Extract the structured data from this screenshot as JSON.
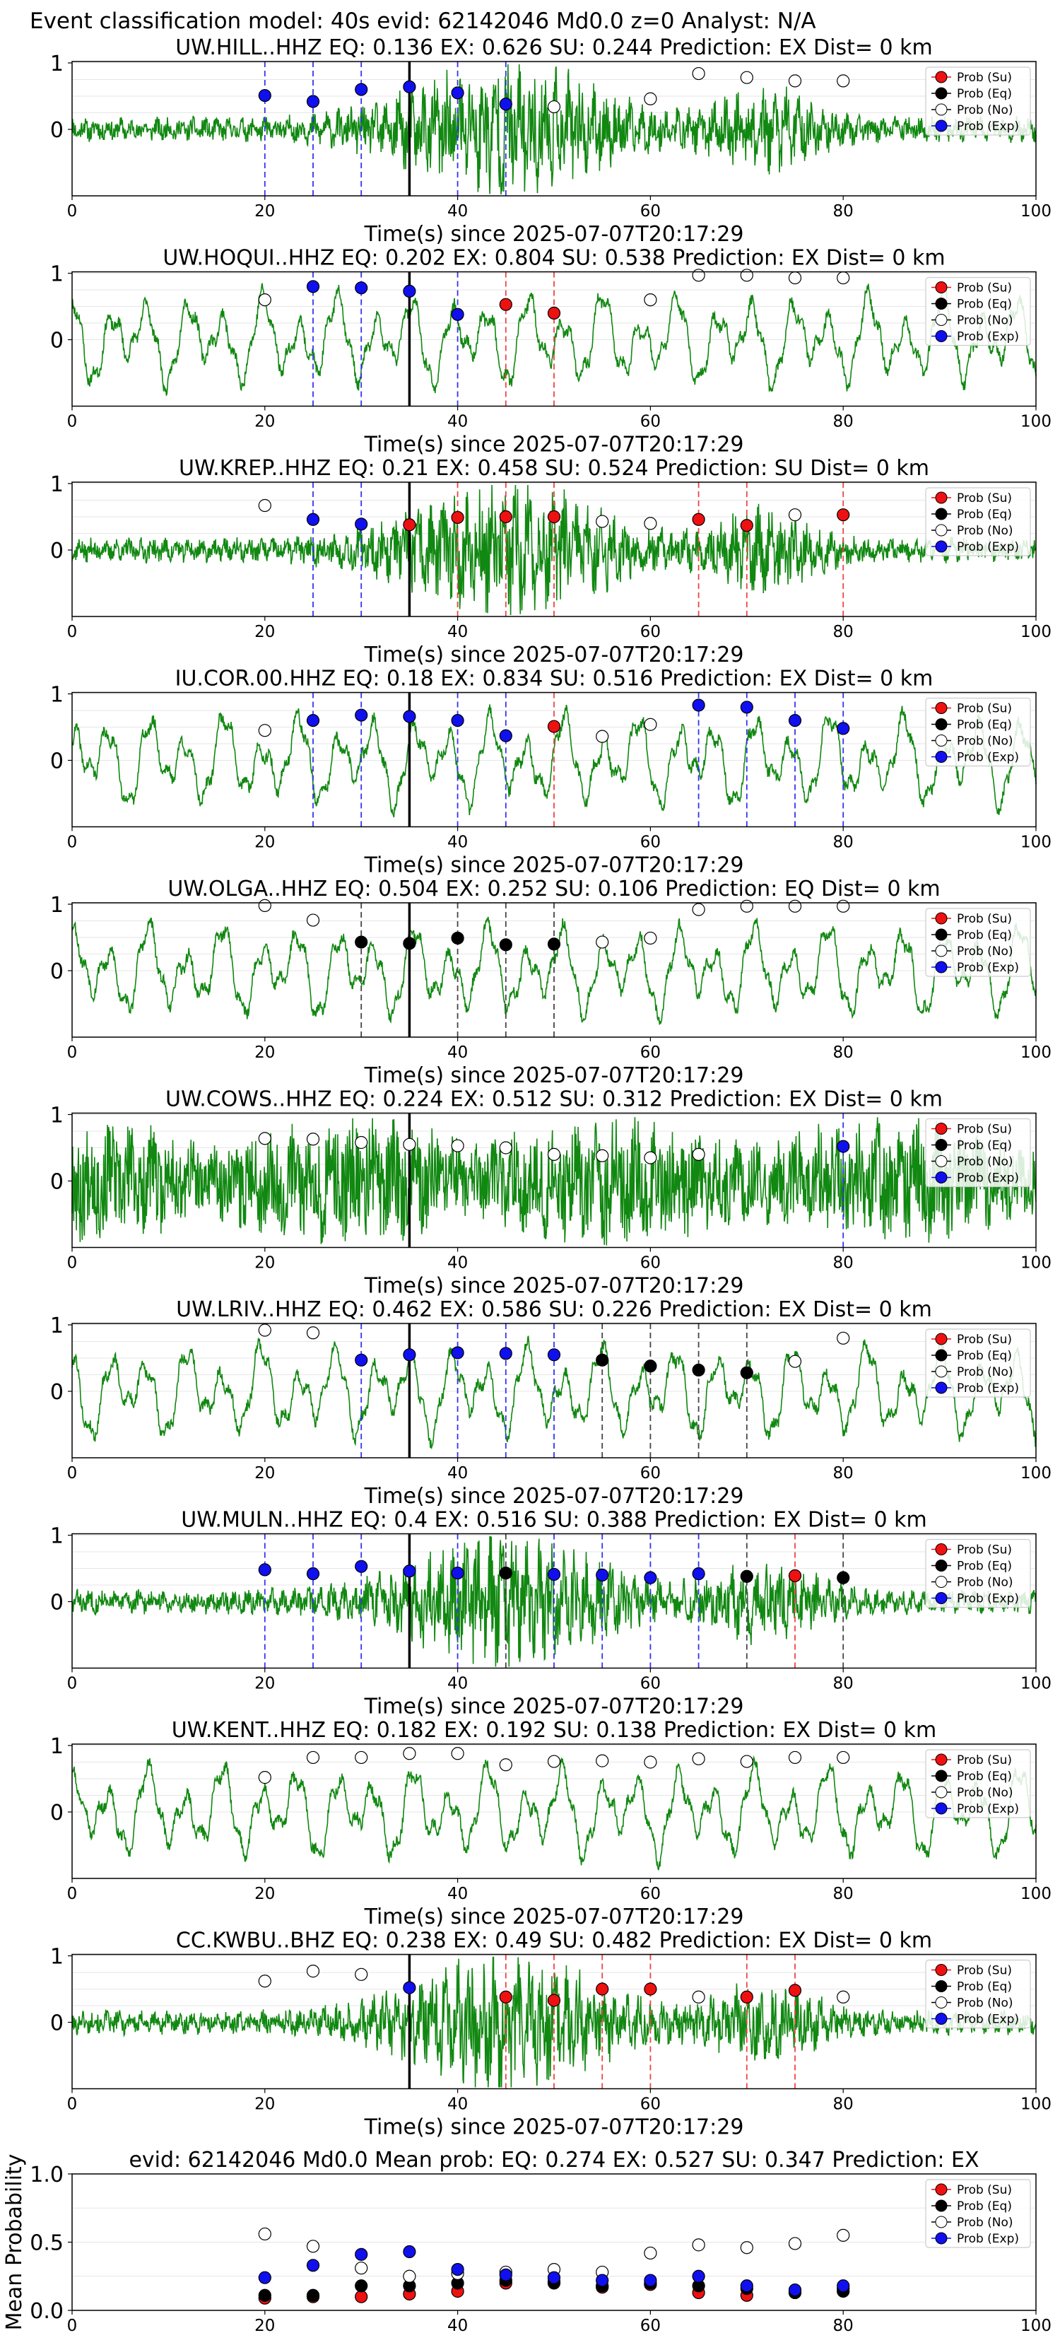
{
  "figure": {
    "suptitle": "Event classification model: 40s evid: 62142046 Md0.0 z=0 Analyst: N/A"
  },
  "legend": {
    "su": "Prob (Su)",
    "eq": "Prob (Eq)",
    "no": "Prob (No)",
    "exp": "Prob (Exp)"
  },
  "colors": {
    "su": "#ee1111",
    "eq": "#000000",
    "no": "#ffffff",
    "exp": "#1010ee",
    "waveform": "#118811",
    "su_line": "#ee4444",
    "eq_line": "#444444",
    "exp_line": "#3333ee"
  },
  "chart_data": [
    {
      "type": "line",
      "title": "UW.HILL..HHZ   EQ: 0.136  EX: 0.626  SU: 0.244   Prediction: EX    Dist= 0 km",
      "xlabel": "Time(s) since 2025-07-07T20:17:29",
      "xlim": [
        0,
        100
      ],
      "xticks": [
        "0",
        "20",
        "40",
        "60",
        "80",
        "100"
      ],
      "yticks": [
        "1",
        "0"
      ],
      "waveform_seed": 11,
      "waveform_style": "burst",
      "arrival_line_x": 35,
      "points": [
        {
          "x": 20,
          "y": 0.51,
          "cls": "exp"
        },
        {
          "x": 25,
          "y": 0.42,
          "cls": "exp"
        },
        {
          "x": 30,
          "y": 0.6,
          "cls": "exp"
        },
        {
          "x": 35,
          "y": 0.64,
          "cls": "exp"
        },
        {
          "x": 40,
          "y": 0.55,
          "cls": "exp"
        },
        {
          "x": 45,
          "y": 0.38,
          "cls": "exp"
        },
        {
          "x": 50,
          "y": 0.34,
          "cls": "no"
        },
        {
          "x": 60,
          "y": 0.46,
          "cls": "no"
        },
        {
          "x": 65,
          "y": 0.84,
          "cls": "no"
        },
        {
          "x": 70,
          "y": 0.78,
          "cls": "no"
        },
        {
          "x": 75,
          "y": 0.73,
          "cls": "no"
        },
        {
          "x": 80,
          "y": 0.73,
          "cls": "no"
        }
      ]
    },
    {
      "type": "line",
      "title": "UW.HOQUI..HHZ   EQ: 0.202  EX: 0.804  SU: 0.538   Prediction: EX    Dist= 0 km",
      "xlabel": "Time(s) since 2025-07-07T20:17:29",
      "xlim": [
        0,
        100
      ],
      "xticks": [
        "0",
        "20",
        "40",
        "60",
        "80",
        "100"
      ],
      "yticks": [
        "1",
        "0"
      ],
      "waveform_seed": 23,
      "waveform_style": "wavy",
      "arrival_line_x": 35,
      "points": [
        {
          "x": 20,
          "y": 0.6,
          "cls": "no"
        },
        {
          "x": 25,
          "y": 0.8,
          "cls": "exp"
        },
        {
          "x": 30,
          "y": 0.78,
          "cls": "exp"
        },
        {
          "x": 35,
          "y": 0.73,
          "cls": "exp"
        },
        {
          "x": 40,
          "y": 0.38,
          "cls": "exp"
        },
        {
          "x": 45,
          "y": 0.53,
          "cls": "su"
        },
        {
          "x": 50,
          "y": 0.4,
          "cls": "su"
        },
        {
          "x": 60,
          "y": 0.6,
          "cls": "no"
        },
        {
          "x": 65,
          "y": 0.97,
          "cls": "no"
        },
        {
          "x": 70,
          "y": 0.97,
          "cls": "no"
        },
        {
          "x": 75,
          "y": 0.93,
          "cls": "no"
        },
        {
          "x": 80,
          "y": 0.93,
          "cls": "no"
        }
      ]
    },
    {
      "type": "line",
      "title": "UW.KREP..HHZ   EQ: 0.21  EX: 0.458  SU: 0.524   Prediction: SU    Dist= 0 km",
      "xlabel": "Time(s) since 2025-07-07T20:17:29",
      "xlim": [
        0,
        100
      ],
      "xticks": [
        "0",
        "20",
        "40",
        "60",
        "80",
        "100"
      ],
      "yticks": [
        "1",
        "0"
      ],
      "waveform_seed": 37,
      "waveform_style": "burst",
      "arrival_line_x": 35,
      "points": [
        {
          "x": 20,
          "y": 0.67,
          "cls": "no"
        },
        {
          "x": 25,
          "y": 0.46,
          "cls": "exp"
        },
        {
          "x": 30,
          "y": 0.39,
          "cls": "exp"
        },
        {
          "x": 35,
          "y": 0.38,
          "cls": "su"
        },
        {
          "x": 40,
          "y": 0.49,
          "cls": "su"
        },
        {
          "x": 45,
          "y": 0.5,
          "cls": "su"
        },
        {
          "x": 50,
          "y": 0.5,
          "cls": "su"
        },
        {
          "x": 55,
          "y": 0.43,
          "cls": "no"
        },
        {
          "x": 60,
          "y": 0.4,
          "cls": "no"
        },
        {
          "x": 65,
          "y": 0.46,
          "cls": "su"
        },
        {
          "x": 70,
          "y": 0.37,
          "cls": "su"
        },
        {
          "x": 75,
          "y": 0.53,
          "cls": "no"
        },
        {
          "x": 80,
          "y": 0.53,
          "cls": "su"
        }
      ]
    },
    {
      "type": "line",
      "title": "IU.COR.00.HHZ   EQ: 0.18  EX: 0.834  SU: 0.516   Prediction: EX    Dist= 0 km",
      "xlabel": "Time(s) since 2025-07-07T20:17:29",
      "xlim": [
        0,
        100
      ],
      "xticks": [
        "0",
        "20",
        "40",
        "60",
        "80",
        "100"
      ],
      "yticks": [
        "1",
        "0"
      ],
      "waveform_seed": 41,
      "waveform_style": "wavy",
      "arrival_line_x": 35,
      "points": [
        {
          "x": 20,
          "y": 0.45,
          "cls": "no"
        },
        {
          "x": 25,
          "y": 0.6,
          "cls": "exp"
        },
        {
          "x": 30,
          "y": 0.68,
          "cls": "exp"
        },
        {
          "x": 35,
          "y": 0.66,
          "cls": "exp"
        },
        {
          "x": 40,
          "y": 0.6,
          "cls": "exp"
        },
        {
          "x": 45,
          "y": 0.37,
          "cls": "exp"
        },
        {
          "x": 50,
          "y": 0.51,
          "cls": "su"
        },
        {
          "x": 55,
          "y": 0.36,
          "cls": "no"
        },
        {
          "x": 60,
          "y": 0.54,
          "cls": "no"
        },
        {
          "x": 65,
          "y": 0.83,
          "cls": "exp"
        },
        {
          "x": 70,
          "y": 0.8,
          "cls": "exp"
        },
        {
          "x": 75,
          "y": 0.6,
          "cls": "exp"
        },
        {
          "x": 80,
          "y": 0.48,
          "cls": "exp"
        }
      ]
    },
    {
      "type": "line",
      "title": "UW.OLGA..HHZ   EQ: 0.504  EX: 0.252  SU: 0.106   Prediction: EQ    Dist= 0 km",
      "xlabel": "Time(s) since 2025-07-07T20:17:29",
      "xlim": [
        0,
        100
      ],
      "xticks": [
        "0",
        "20",
        "40",
        "60",
        "80",
        "100"
      ],
      "yticks": [
        "1",
        "0"
      ],
      "waveform_seed": 53,
      "waveform_style": "wavy",
      "arrival_line_x": 35,
      "points": [
        {
          "x": 20,
          "y": 0.98,
          "cls": "no"
        },
        {
          "x": 25,
          "y": 0.76,
          "cls": "no"
        },
        {
          "x": 30,
          "y": 0.43,
          "cls": "eq"
        },
        {
          "x": 35,
          "y": 0.41,
          "cls": "eq"
        },
        {
          "x": 40,
          "y": 0.49,
          "cls": "eq"
        },
        {
          "x": 45,
          "y": 0.39,
          "cls": "eq"
        },
        {
          "x": 50,
          "y": 0.4,
          "cls": "eq"
        },
        {
          "x": 55,
          "y": 0.43,
          "cls": "no"
        },
        {
          "x": 60,
          "y": 0.49,
          "cls": "no"
        },
        {
          "x": 65,
          "y": 0.92,
          "cls": "no"
        },
        {
          "x": 70,
          "y": 0.97,
          "cls": "no"
        },
        {
          "x": 75,
          "y": 0.97,
          "cls": "no"
        },
        {
          "x": 80,
          "y": 0.97,
          "cls": "no"
        }
      ]
    },
    {
      "type": "line",
      "title": "UW.COWS..HHZ   EQ: 0.224  EX: 0.512  SU: 0.312   Prediction: EX    Dist= 0 km",
      "xlabel": "Time(s) since 2025-07-07T20:17:29",
      "xlim": [
        0,
        100
      ],
      "xticks": [
        "0",
        "20",
        "40",
        "60",
        "80",
        "100"
      ],
      "yticks": [
        "1",
        "0"
      ],
      "waveform_seed": 67,
      "waveform_style": "dense",
      "arrival_line_x": 35,
      "points": [
        {
          "x": 20,
          "y": 0.64,
          "cls": "no"
        },
        {
          "x": 25,
          "y": 0.63,
          "cls": "no"
        },
        {
          "x": 30,
          "y": 0.58,
          "cls": "no"
        },
        {
          "x": 35,
          "y": 0.55,
          "cls": "no"
        },
        {
          "x": 40,
          "y": 0.53,
          "cls": "no"
        },
        {
          "x": 45,
          "y": 0.5,
          "cls": "no"
        },
        {
          "x": 50,
          "y": 0.4,
          "cls": "no"
        },
        {
          "x": 55,
          "y": 0.38,
          "cls": "no"
        },
        {
          "x": 60,
          "y": 0.35,
          "cls": "no"
        },
        {
          "x": 65,
          "y": 0.4,
          "cls": "no"
        },
        {
          "x": 80,
          "y": 0.52,
          "cls": "exp"
        }
      ]
    },
    {
      "type": "line",
      "title": "UW.LRIV..HHZ   EQ: 0.462  EX: 0.586  SU: 0.226   Prediction: EX    Dist= 0 km",
      "xlabel": "Time(s) since 2025-07-07T20:17:29",
      "xlim": [
        0,
        100
      ],
      "xticks": [
        "0",
        "20",
        "40",
        "60",
        "80",
        "100"
      ],
      "yticks": [
        "1",
        "0"
      ],
      "waveform_seed": 79,
      "waveform_style": "wavy",
      "arrival_line_x": 35,
      "points": [
        {
          "x": 20,
          "y": 0.92,
          "cls": "no"
        },
        {
          "x": 25,
          "y": 0.88,
          "cls": "no"
        },
        {
          "x": 30,
          "y": 0.47,
          "cls": "exp"
        },
        {
          "x": 35,
          "y": 0.55,
          "cls": "exp"
        },
        {
          "x": 40,
          "y": 0.58,
          "cls": "exp"
        },
        {
          "x": 45,
          "y": 0.57,
          "cls": "exp"
        },
        {
          "x": 50,
          "y": 0.55,
          "cls": "exp"
        },
        {
          "x": 55,
          "y": 0.47,
          "cls": "eq"
        },
        {
          "x": 60,
          "y": 0.38,
          "cls": "eq"
        },
        {
          "x": 65,
          "y": 0.32,
          "cls": "eq"
        },
        {
          "x": 70,
          "y": 0.28,
          "cls": "eq"
        },
        {
          "x": 75,
          "y": 0.45,
          "cls": "no"
        },
        {
          "x": 80,
          "y": 0.8,
          "cls": "no"
        }
      ]
    },
    {
      "type": "line",
      "title": "UW.MULN..HHZ   EQ: 0.4  EX: 0.516  SU: 0.388   Prediction: EX    Dist= 0 km",
      "xlabel": "Time(s) since 2025-07-07T20:17:29",
      "xlim": [
        0,
        100
      ],
      "xticks": [
        "0",
        "20",
        "40",
        "60",
        "80",
        "100"
      ],
      "yticks": [
        "1",
        "0"
      ],
      "waveform_seed": 83,
      "waveform_style": "burst",
      "arrival_line_x": 35,
      "points": [
        {
          "x": 20,
          "y": 0.48,
          "cls": "exp"
        },
        {
          "x": 25,
          "y": 0.42,
          "cls": "exp"
        },
        {
          "x": 30,
          "y": 0.53,
          "cls": "exp"
        },
        {
          "x": 35,
          "y": 0.46,
          "cls": "exp"
        },
        {
          "x": 40,
          "y": 0.43,
          "cls": "exp"
        },
        {
          "x": 45,
          "y": 0.43,
          "cls": "eq"
        },
        {
          "x": 50,
          "y": 0.41,
          "cls": "exp"
        },
        {
          "x": 55,
          "y": 0.4,
          "cls": "exp"
        },
        {
          "x": 60,
          "y": 0.36,
          "cls": "exp"
        },
        {
          "x": 65,
          "y": 0.42,
          "cls": "exp"
        },
        {
          "x": 70,
          "y": 0.38,
          "cls": "eq"
        },
        {
          "x": 75,
          "y": 0.39,
          "cls": "su"
        },
        {
          "x": 80,
          "y": 0.36,
          "cls": "eq"
        }
      ]
    },
    {
      "type": "line",
      "title": "UW.KENT..HHZ   EQ: 0.182  EX: 0.192  SU: 0.138   Prediction: EX    Dist= 0 km",
      "xlabel": "Time(s) since 2025-07-07T20:17:29",
      "xlim": [
        0,
        100
      ],
      "xticks": [
        "0",
        "20",
        "40",
        "60",
        "80",
        "100"
      ],
      "yticks": [
        "1",
        "0"
      ],
      "waveform_seed": 97,
      "waveform_style": "wavy",
      "arrival_line_x": null,
      "points": [
        {
          "x": 20,
          "y": 0.52,
          "cls": "no"
        },
        {
          "x": 25,
          "y": 0.82,
          "cls": "no"
        },
        {
          "x": 30,
          "y": 0.82,
          "cls": "no"
        },
        {
          "x": 35,
          "y": 0.88,
          "cls": "no"
        },
        {
          "x": 40,
          "y": 0.88,
          "cls": "no"
        },
        {
          "x": 45,
          "y": 0.71,
          "cls": "no"
        },
        {
          "x": 50,
          "y": 0.76,
          "cls": "no"
        },
        {
          "x": 55,
          "y": 0.77,
          "cls": "no"
        },
        {
          "x": 60,
          "y": 0.75,
          "cls": "no"
        },
        {
          "x": 65,
          "y": 0.8,
          "cls": "no"
        },
        {
          "x": 70,
          "y": 0.76,
          "cls": "no"
        },
        {
          "x": 75,
          "y": 0.82,
          "cls": "no"
        },
        {
          "x": 80,
          "y": 0.82,
          "cls": "no"
        }
      ]
    },
    {
      "type": "line",
      "title": "CC.KWBU..BHZ   EQ: 0.238  EX: 0.49  SU: 0.482   Prediction: EX    Dist= 0 km",
      "xlabel": "Time(s) since 2025-07-07T20:17:29",
      "xlim": [
        0,
        100
      ],
      "xticks": [
        "0",
        "20",
        "40",
        "60",
        "80",
        "100"
      ],
      "yticks": [
        "1",
        "0"
      ],
      "waveform_seed": 101,
      "waveform_style": "burst",
      "arrival_line_x": 35,
      "points": [
        {
          "x": 20,
          "y": 0.62,
          "cls": "no"
        },
        {
          "x": 25,
          "y": 0.77,
          "cls": "no"
        },
        {
          "x": 30,
          "y": 0.72,
          "cls": "no"
        },
        {
          "x": 35,
          "y": 0.52,
          "cls": "exp"
        },
        {
          "x": 45,
          "y": 0.38,
          "cls": "su"
        },
        {
          "x": 50,
          "y": 0.33,
          "cls": "su"
        },
        {
          "x": 55,
          "y": 0.5,
          "cls": "su"
        },
        {
          "x": 60,
          "y": 0.5,
          "cls": "su"
        },
        {
          "x": 65,
          "y": 0.38,
          "cls": "no"
        },
        {
          "x": 70,
          "y": 0.38,
          "cls": "su"
        },
        {
          "x": 75,
          "y": 0.48,
          "cls": "su"
        },
        {
          "x": 80,
          "y": 0.38,
          "cls": "no"
        }
      ]
    },
    {
      "type": "scatter",
      "title": "evid: 62142046  Md0.0   Mean prob:   EQ: 0.274  EX: 0.527  SU: 0.347   Prediction: EX",
      "ylabel": "Mean Probability",
      "xlim": [
        0,
        100
      ],
      "ylim": [
        0,
        1
      ],
      "xticks": [
        "0",
        "20",
        "40",
        "60",
        "80",
        "100"
      ],
      "yticks": [
        "1.0",
        "0.5",
        "0.0"
      ],
      "series": [
        {
          "name": "Prob (Su)",
          "cls": "su",
          "x": [
            20,
            25,
            30,
            35,
            40,
            45,
            50,
            55,
            60,
            65,
            70,
            75,
            80
          ],
          "values": [
            0.09,
            0.1,
            0.1,
            0.12,
            0.14,
            0.2,
            0.21,
            0.17,
            0.19,
            0.13,
            0.11,
            0.13,
            0.16
          ]
        },
        {
          "name": "Prob (Eq)",
          "cls": "eq",
          "x": [
            20,
            25,
            30,
            35,
            40,
            45,
            50,
            55,
            60,
            65,
            70,
            75,
            80
          ],
          "values": [
            0.11,
            0.11,
            0.18,
            0.18,
            0.2,
            0.22,
            0.2,
            0.18,
            0.2,
            0.18,
            0.16,
            0.13,
            0.14
          ]
        },
        {
          "name": "Prob (No)",
          "cls": "no",
          "x": [
            20,
            25,
            30,
            35,
            40,
            45,
            50,
            55,
            60,
            65,
            70,
            75,
            80
          ],
          "values": [
            0.56,
            0.47,
            0.31,
            0.25,
            0.27,
            0.28,
            0.3,
            0.28,
            0.42,
            0.48,
            0.46,
            0.49,
            0.55
          ]
        },
        {
          "name": "Prob (Exp)",
          "cls": "exp",
          "x": [
            20,
            25,
            30,
            35,
            40,
            45,
            50,
            55,
            60,
            65,
            70,
            75,
            80
          ],
          "values": [
            0.24,
            0.33,
            0.41,
            0.43,
            0.3,
            0.26,
            0.24,
            0.22,
            0.22,
            0.25,
            0.18,
            0.15,
            0.18
          ]
        }
      ]
    }
  ]
}
